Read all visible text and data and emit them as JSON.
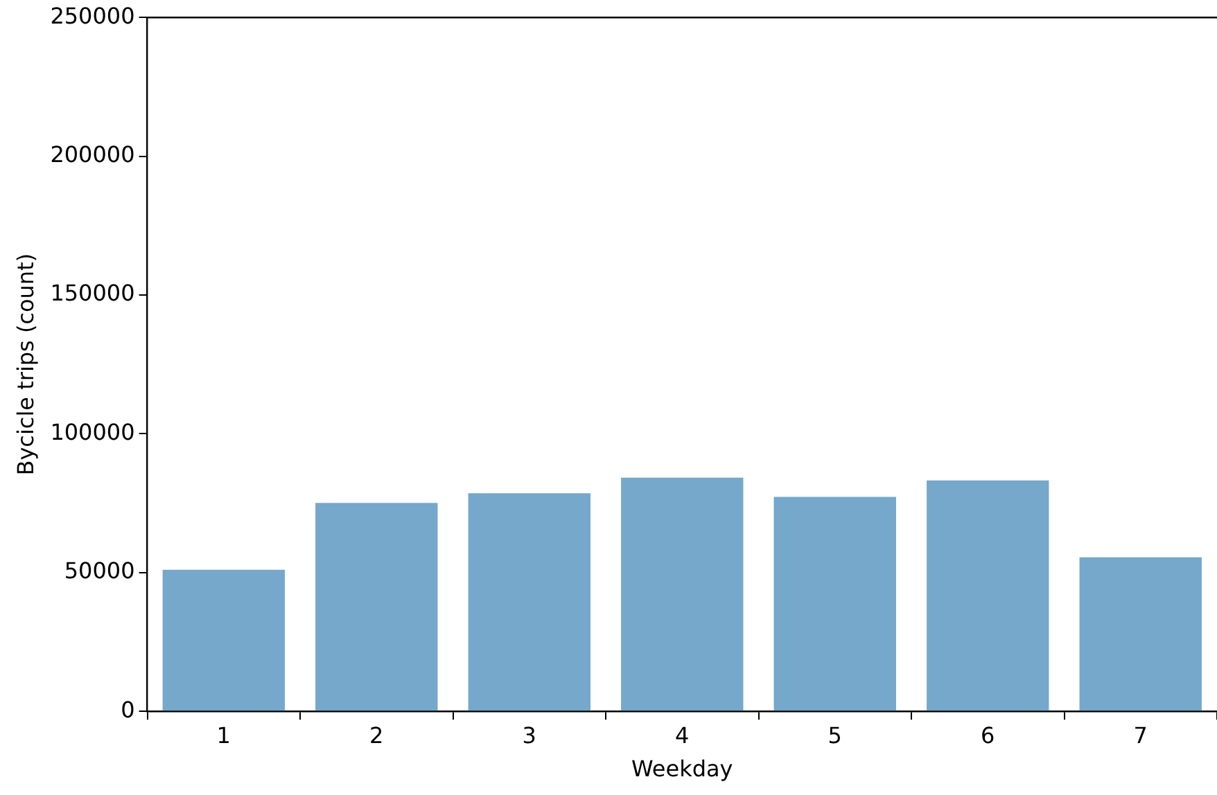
{
  "chart_data": {
    "type": "bar",
    "xlabel": "Weekday",
    "ylabel": "Bycicle trips (count)",
    "categories": [
      "1",
      "2",
      "3",
      "4",
      "5",
      "6",
      "7"
    ],
    "values": [
      51000,
      75100,
      78600,
      84200,
      77300,
      83200,
      55500
    ],
    "color": "#75a8cb",
    "ylim": [
      0,
      250000
    ],
    "yticks": [
      0,
      50000,
      100000,
      150000,
      200000,
      250000
    ],
    "grid": false,
    "legend": false
  }
}
